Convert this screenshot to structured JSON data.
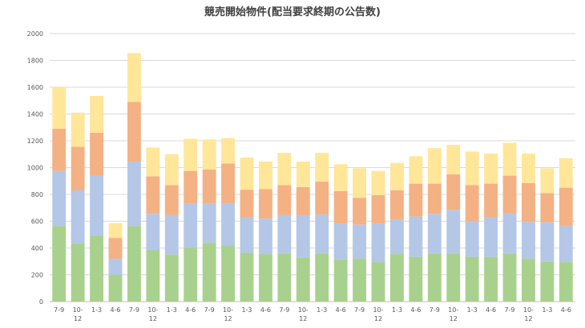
{
  "chart_data": {
    "type": "bar",
    "stacked": true,
    "title": "競売開始物件(配当要求終期の公告数)",
    "xlabel": "",
    "ylabel": "",
    "ylim": [
      0,
      2000
    ],
    "yticks": [
      0,
      200,
      400,
      600,
      800,
      1000,
      1200,
      1400,
      1600,
      1800,
      2000
    ],
    "grid": true,
    "legend": "none",
    "categories": [
      "7-9",
      "10-12",
      "1-3",
      "4-6",
      "7-9",
      "10-12",
      "1-3",
      "4-6",
      "7-9",
      "10-12",
      "1-3",
      "4-6",
      "7-9",
      "10-12",
      "1-3",
      "4-6",
      "7-9",
      "10-12",
      "1-3",
      "4-6",
      "7-9",
      "10-12",
      "1-3",
      "4-6",
      "7-9",
      "10-12",
      "1-3",
      "4-6"
    ],
    "series": [
      {
        "color": "#a9d18e",
        "values": [
          565,
          435,
          495,
          200,
          565,
          385,
          350,
          400,
          440,
          415,
          365,
          355,
          360,
          330,
          360,
          315,
          320,
          295,
          355,
          335,
          360,
          360,
          335,
          335,
          360,
          320,
          300,
          295
        ]
      },
      {
        "color": "#b4c7e7",
        "values": [
          410,
          395,
          445,
          120,
          480,
          270,
          295,
          330,
          290,
          315,
          265,
          265,
          285,
          315,
          290,
          270,
          255,
          285,
          255,
          300,
          295,
          325,
          265,
          295,
          300,
          275,
          290,
          270
        ]
      },
      {
        "color": "#f4b183",
        "values": [
          315,
          325,
          320,
          155,
          445,
          280,
          225,
          245,
          255,
          300,
          205,
          220,
          225,
          210,
          245,
          240,
          200,
          215,
          220,
          245,
          225,
          265,
          270,
          250,
          280,
          290,
          220,
          285
        ]
      },
      {
        "color": "#ffe699",
        "values": [
          310,
          255,
          275,
          110,
          365,
          215,
          230,
          240,
          225,
          190,
          240,
          205,
          240,
          190,
          215,
          200,
          220,
          180,
          205,
          205,
          265,
          220,
          250,
          225,
          245,
          220,
          185,
          220
        ]
      }
    ]
  }
}
